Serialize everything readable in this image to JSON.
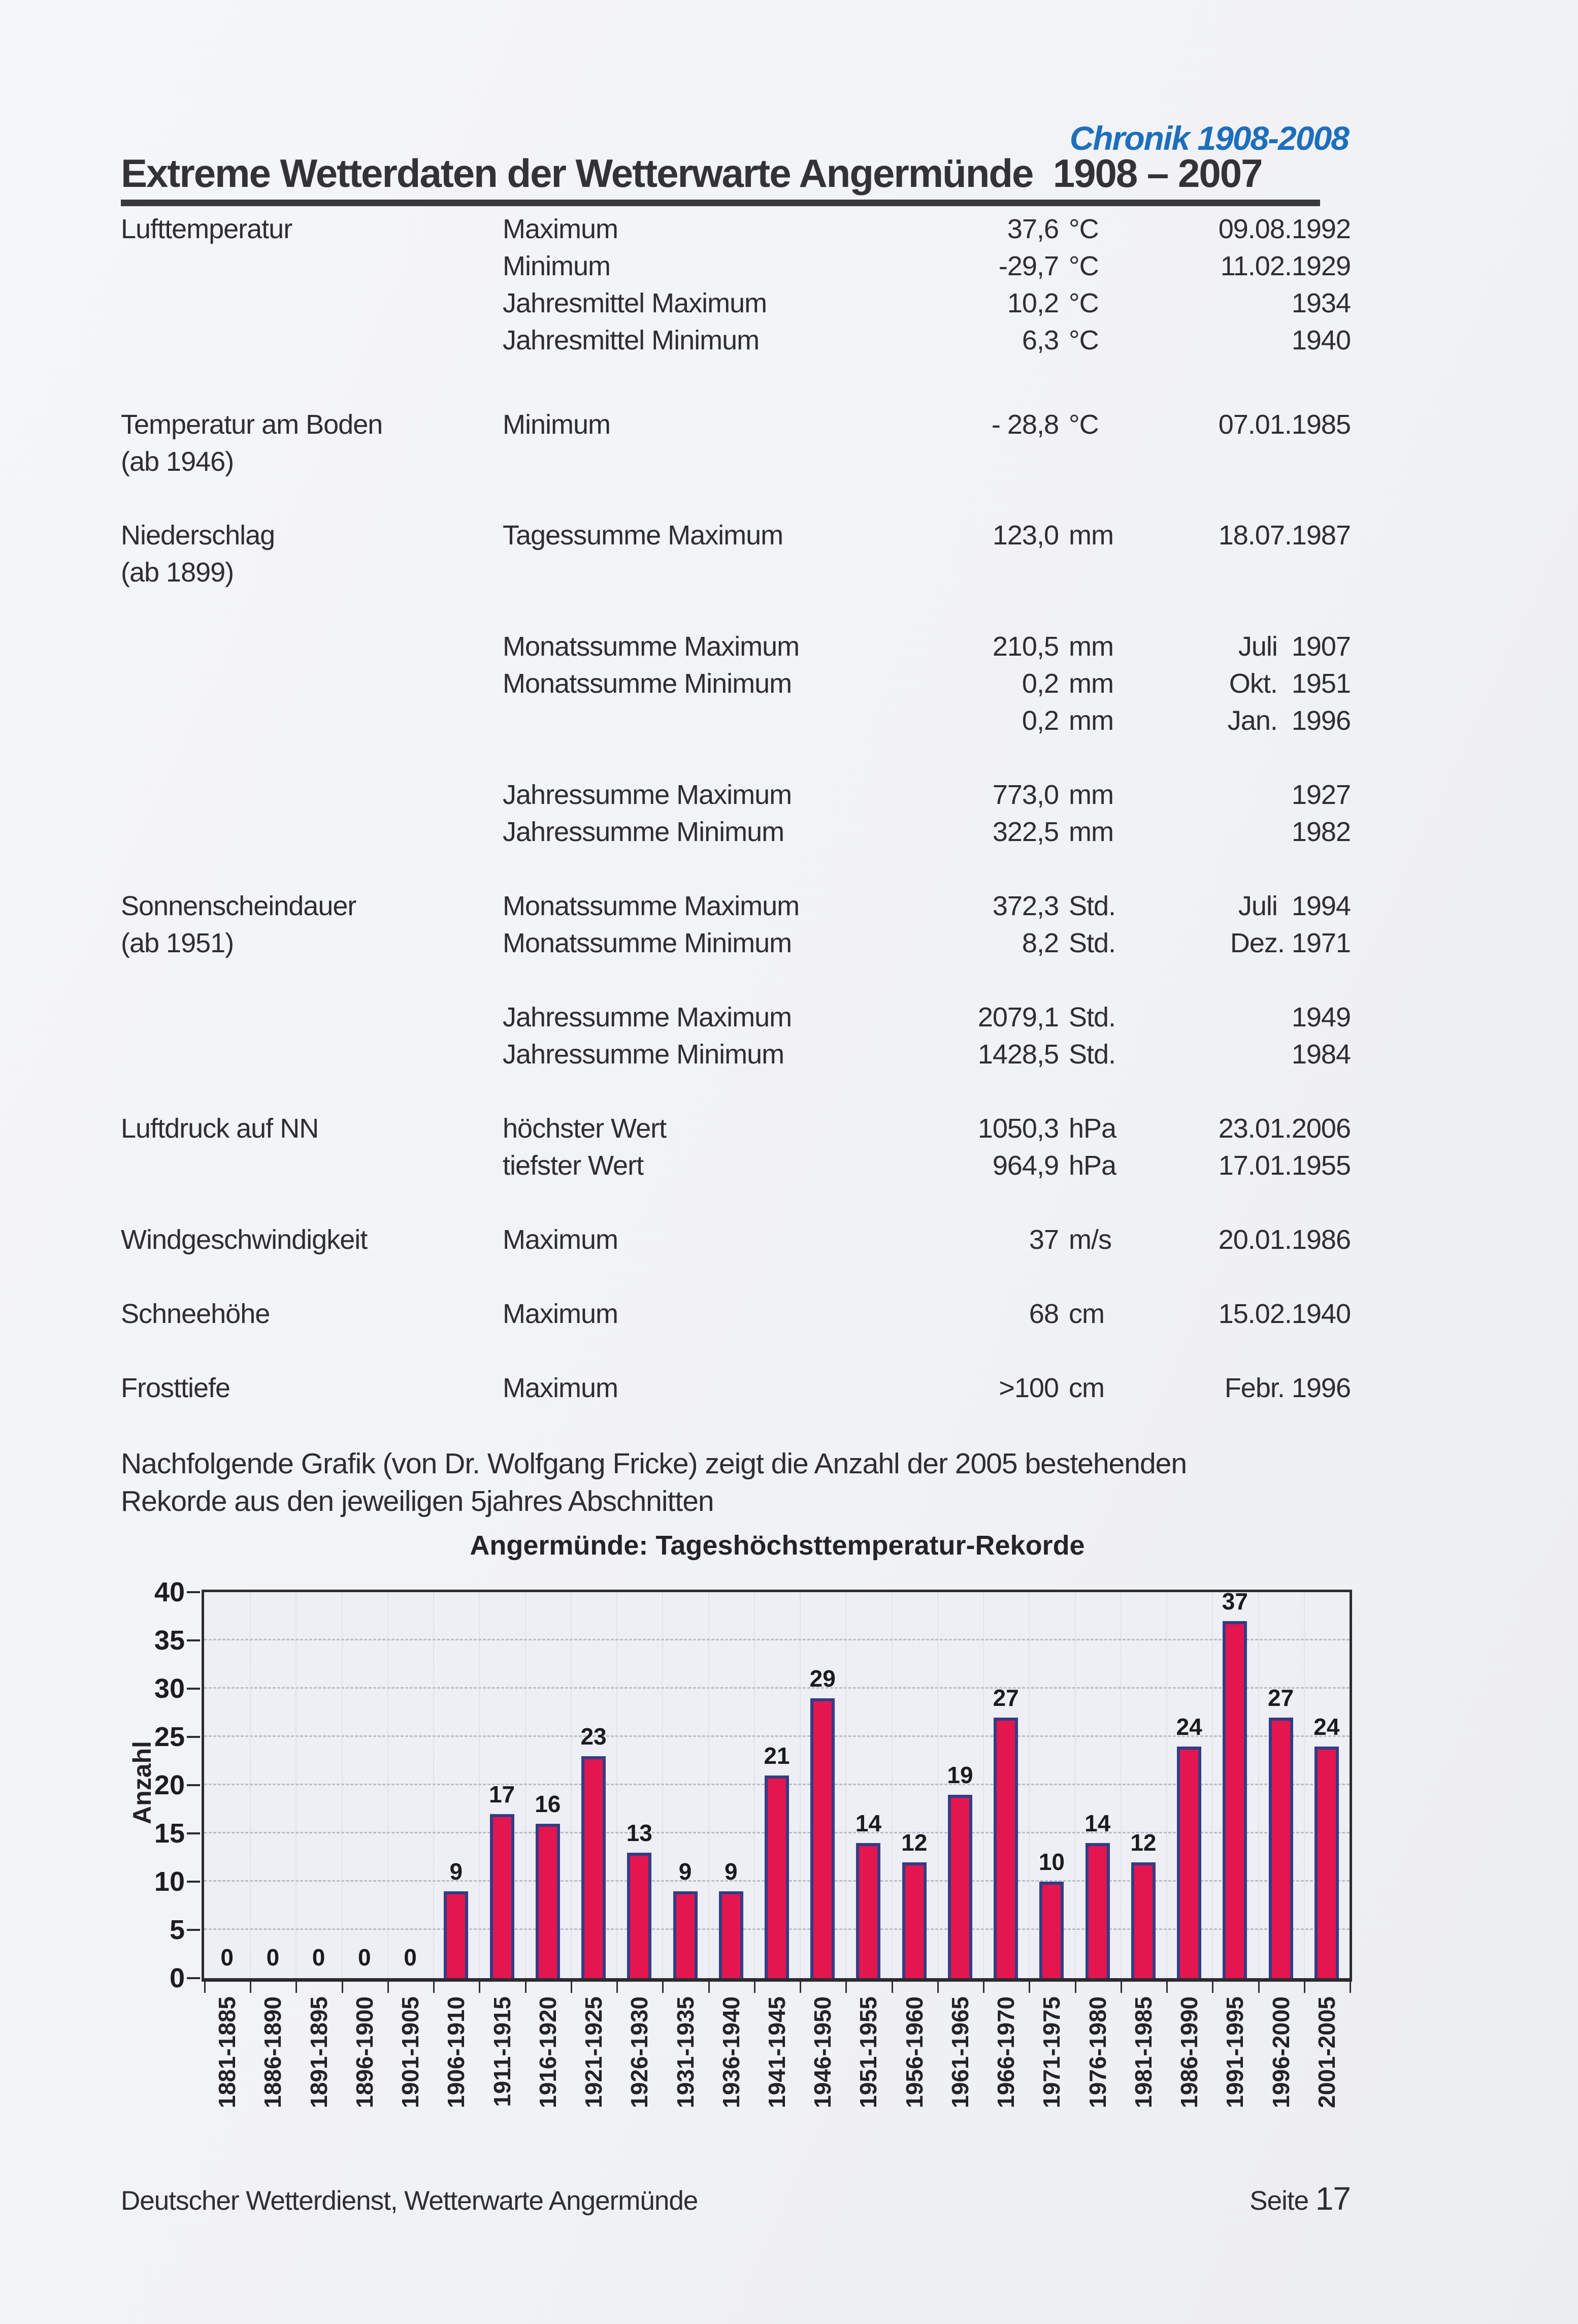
{
  "page": {
    "header_badge": "Chronik 1908-2008",
    "title": "Extreme Wetterdaten der Wetterwarte Angermünde  1908 – 2007",
    "intro": "Nachfolgende Grafik (von Dr. Wolfgang Fricke) zeigt die Anzahl der 2005 bestehenden\nRekorde aus den jeweiligen 5jahres Abschnitten",
    "footer_left": "Deutscher Wetterdienst, Wetterwarte Angermünde",
    "footer_page_label": "Seite ",
    "footer_page_number": "17"
  },
  "records_table": {
    "rows": [
      {
        "cat": "Lufttemperatur",
        "label": "Maximum",
        "value": "37,6",
        "unit": "°C",
        "date": "09.08.1992"
      },
      {
        "label": "Minimum",
        "value": "-29,7",
        "unit": "°C",
        "date": "11.02.1929"
      },
      {
        "label": "Jahresmittel Maximum",
        "value": "10,2",
        "unit": "°C",
        "date": "1934"
      },
      {
        "label": "Jahresmittel Minimum",
        "value": "6,3",
        "unit": "°C",
        "date": "1940"
      },
      {
        "cat": "Temperatur am Boden",
        "cat2": "(ab 1946)",
        "label": "Minimum",
        "value": "- 28,8",
        "unit": "°C",
        "date": "07.01.1985"
      },
      {
        "cat": "Niederschlag",
        "cat2": "(ab 1899)",
        "label": "Tagessumme Maximum",
        "value": "123,0",
        "unit": "mm",
        "date": "18.07.1987"
      },
      {
        "label": "Monatssumme Maximum",
        "value": "210,5",
        "unit": "mm",
        "date": "Juli  1907"
      },
      {
        "label": "Monatssumme Minimum",
        "value": "0,2",
        "unit": "mm",
        "date": "Okt.  1951"
      },
      {
        "label": "",
        "value": "0,2",
        "unit": "mm",
        "date": "Jan.  1996"
      },
      {
        "label": "Jahressumme Maximum",
        "value": "773,0",
        "unit": "mm",
        "date": "1927"
      },
      {
        "label": "Jahressumme Minimum",
        "value": "322,5",
        "unit": "mm",
        "date": "1982"
      },
      {
        "cat": "Sonnenscheindauer",
        "cat2": "(ab 1951)",
        "label": "Monatssumme Maximum",
        "value": "372,3",
        "unit": "Std.",
        "date": "Juli  1994"
      },
      {
        "label": "Monatssumme Minimum",
        "value": "8,2",
        "unit": "Std.",
        "date": "Dez. 1971"
      },
      {
        "label": "Jahressumme Maximum",
        "value": "2079,1",
        "unit": "Std.",
        "date": "1949"
      },
      {
        "label": "Jahressumme Minimum",
        "value": "1428,5",
        "unit": "Std.",
        "date": "1984"
      },
      {
        "cat": "Luftdruck auf NN",
        "label": "höchster Wert",
        "value": "1050,3",
        "unit": "hPa",
        "date": "23.01.2006"
      },
      {
        "label": "tiefster Wert",
        "value": "964,9",
        "unit": "hPa",
        "date": "17.01.1955"
      },
      {
        "cat": "Windgeschwindigkeit",
        "label": "Maximum",
        "value": "37",
        "unit": "m/s",
        "date": "20.01.1986"
      },
      {
        "cat": "Schneehöhe",
        "label": "Maximum",
        "value": "68",
        "unit": "cm",
        "date": "15.02.1940"
      },
      {
        "cat": "Frosttiefe",
        "label": "Maximum",
        "value": ">100",
        "unit": "cm",
        "date": "Febr. 1996"
      }
    ]
  },
  "chart_data": {
    "type": "bar",
    "title": "Angermünde: Tageshöchsttemperatur-Rekorde",
    "xlabel": "",
    "ylabel": "Anzahl",
    "ylim": [
      0,
      40
    ],
    "yticks": [
      0,
      5,
      10,
      15,
      20,
      25,
      30,
      35,
      40
    ],
    "grid": "dashed horizontal gridlines at 5..35, faint dotted vertical per category",
    "legend": "none",
    "categories": [
      "1881-1885",
      "1886-1890",
      "1891-1895",
      "1896-1900",
      "1901-1905",
      "1906-1910",
      "1911-1915",
      "1916-1920",
      "1921-1925",
      "1926-1930",
      "1931-1935",
      "1936-1940",
      "1941-1945",
      "1946-1950",
      "1951-1955",
      "1956-1960",
      "1961-1965",
      "1966-1970",
      "1971-1975",
      "1976-1980",
      "1981-1985",
      "1986-1990",
      "1991-1995",
      "1996-2000",
      "2001-2005"
    ],
    "values": [
      0,
      0,
      0,
      0,
      0,
      9,
      17,
      16,
      23,
      13,
      9,
      9,
      21,
      29,
      14,
      12,
      19,
      27,
      10,
      14,
      12,
      24,
      37,
      27,
      24
    ],
    "bar_color": "#e31650",
    "bar_border_color": "#333d85"
  },
  "colors": {
    "accent_blue": "#1d6fbd",
    "text": "#2e2e31",
    "page_bg": "#f1f2f5",
    "plot_bg": "#edeff4"
  }
}
